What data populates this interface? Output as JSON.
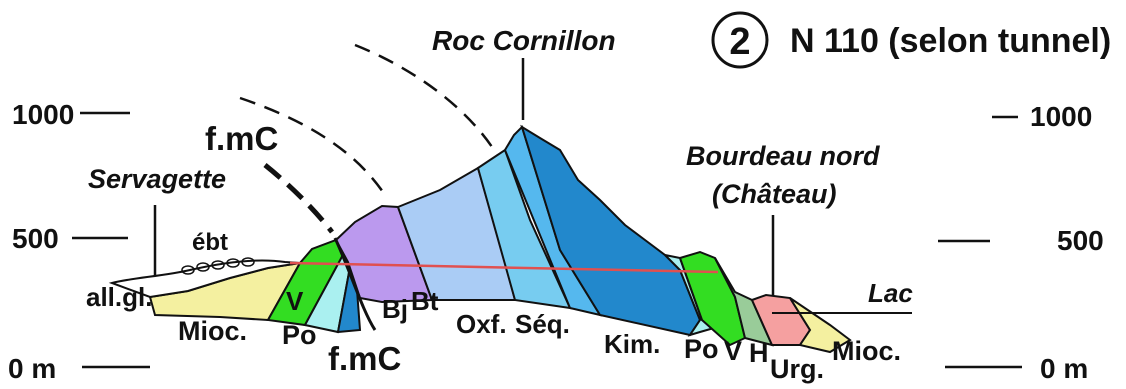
{
  "title": {
    "number": "2",
    "text": "N 110 (selon tunnel)"
  },
  "elevation_scale": {
    "left": [
      "1000",
      "500",
      "0 m"
    ],
    "right": [
      "1000",
      "500",
      "0 m"
    ]
  },
  "place_names": {
    "peak": "Roc Cornillon",
    "servagette": "Servagette",
    "bourdeau_line1": "Bourdeau nord",
    "bourdeau_line2": "(Château)",
    "lac": "Lac"
  },
  "fault_labels": {
    "upper": "f.mC",
    "lower": "f.mC"
  },
  "unit_labels": {
    "ebt": "ébt",
    "allgl": "all.gl.",
    "mioc_west": "Mioc.",
    "v_west": "V",
    "po_west": "Po",
    "bj": "Bj",
    "bt": "Bt",
    "oxf": "Oxf.",
    "seq": "Séq.",
    "kim": "Kim.",
    "po_east": "Po",
    "v_east": "V",
    "h_east": "H",
    "urg": "Urg.",
    "mioc_east": "Mioc."
  },
  "colors": {
    "miocene": "#f4f0a0",
    "valanginien_hauterivien": "#33dd22",
    "portlandien": "#aaf0f0",
    "bajocien": "#bb99ee",
    "bathonien": "#aaccf5",
    "oxfordien": "#77ccf0",
    "sequanien": "#55b8ee",
    "kimmeridgien": "#2288cc",
    "hauterivien_east": "#99cc99",
    "urgonien": "#f5a0a0",
    "tunnel_line": "#e05050"
  }
}
